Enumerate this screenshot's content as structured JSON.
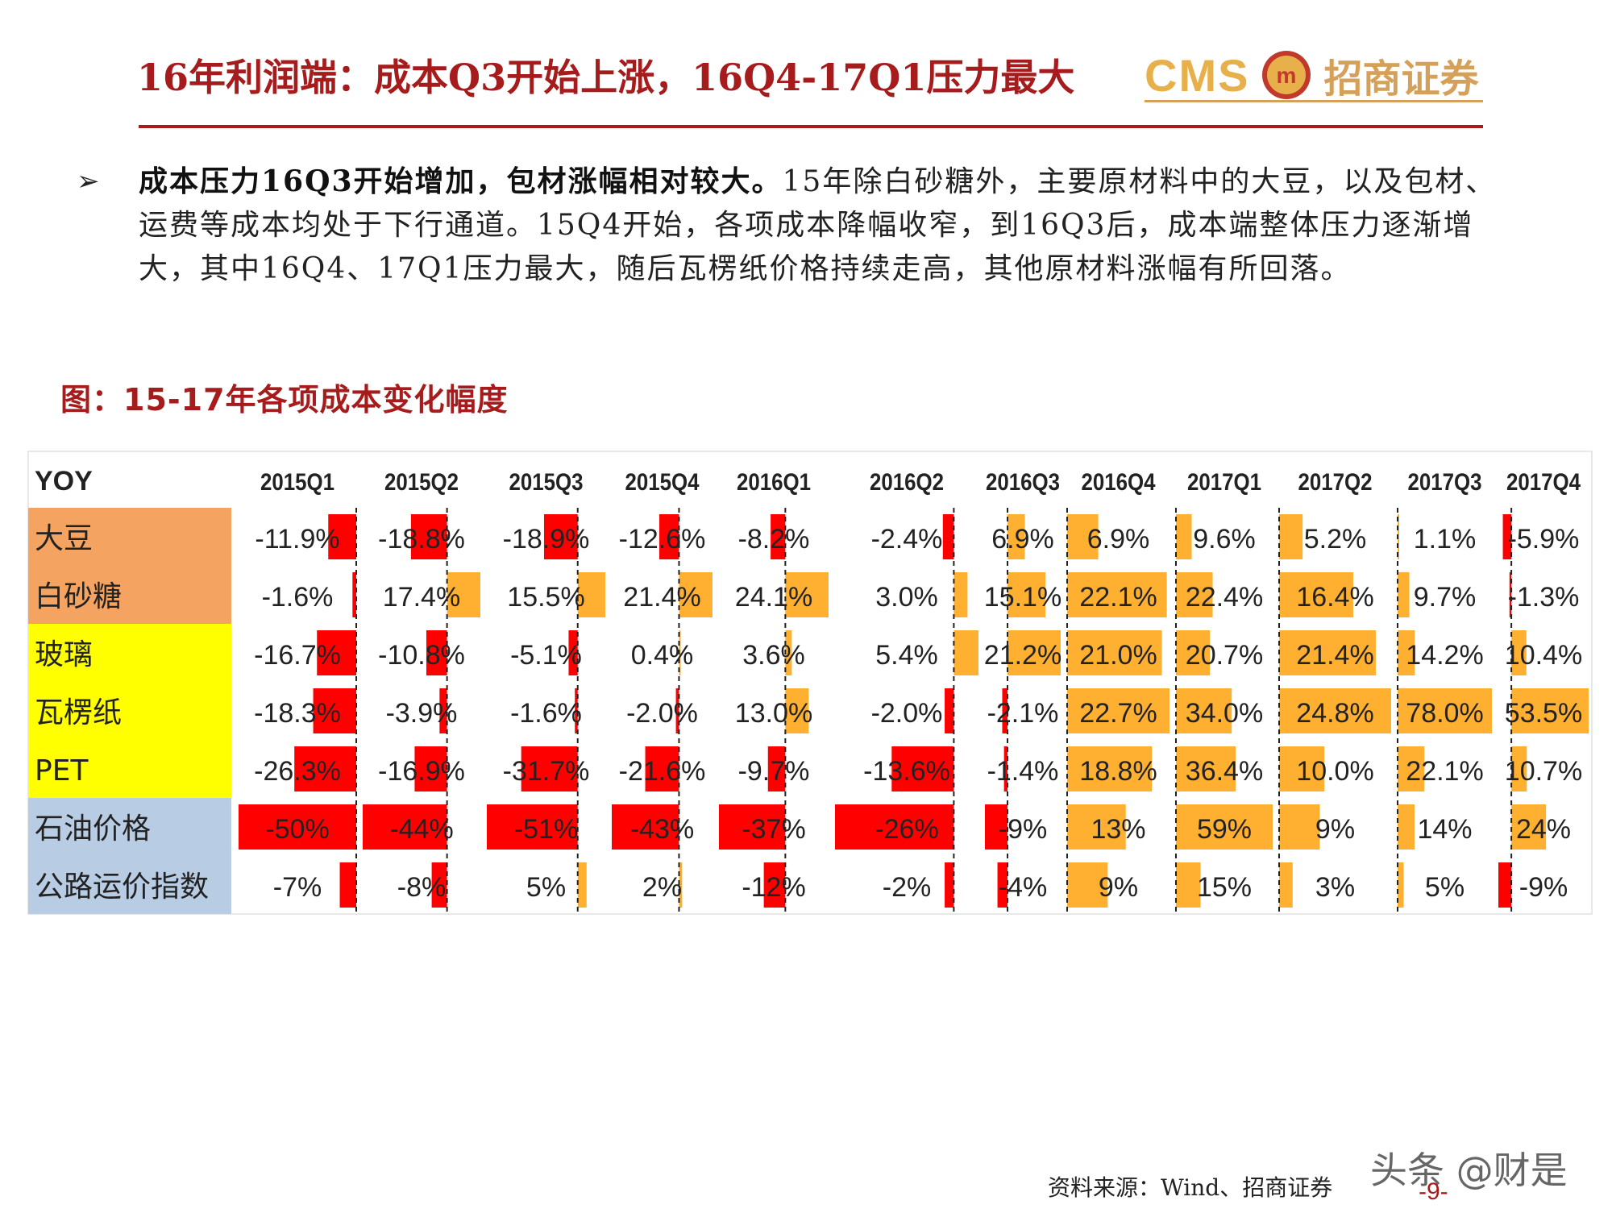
{
  "header": {
    "title": "16年利润端：成本Q3开始上涨，16Q4-17Q1压力最大",
    "logo_text": "CMS",
    "logo_name": "招商证券",
    "brand_color": "#a61c1c",
    "logo_color": "#e8b04a"
  },
  "bullet": {
    "icon": "arrow-bullet-icon",
    "bold": "成本压力16Q3开始增加，包材涨幅相对较大。",
    "text": "15年除白砂糖外，主要原材料中的大豆，以及包材、运费等成本均处于下行通道。15Q4开始，各项成本降幅收窄，到16Q3后，成本端整体压力逐渐增大，其中16Q4、17Q1压力最大，随后瓦楞纸价格持续走高，其他原材料涨幅有所回落。"
  },
  "figure": {
    "title": "图：15-17年各项成本变化幅度"
  },
  "chart_data": {
    "type": "table",
    "corner_label": "YOY",
    "columns": [
      "2015Q1",
      "2015Q2",
      "2015Q3",
      "2015Q4",
      "2016Q1",
      "2016Q2",
      "2016Q3",
      "2016Q4",
      "2017Q1",
      "2017Q2",
      "2017Q3",
      "2017Q4"
    ],
    "rows": [
      {
        "name": "大豆",
        "group": "orange",
        "values": [
          -11.9,
          -18.8,
          -18.9,
          -12.6,
          -8.2,
          -2.4,
          6.9,
          6.9,
          9.6,
          5.2,
          1.1,
          -5.9
        ],
        "labels": [
          "-11.9%",
          "-18.8%",
          "-18.9%",
          "-12.6%",
          "-8.2%",
          "-2.4%",
          "6.9%",
          "6.9%",
          "9.6%",
          "5.2%",
          "1.1%",
          "-5.9%"
        ]
      },
      {
        "name": "白砂糖",
        "group": "orange",
        "values": [
          -1.6,
          17.4,
          15.5,
          21.4,
          24.1,
          3.0,
          15.1,
          22.1,
          22.4,
          16.4,
          9.7,
          -1.3
        ],
        "labels": [
          "-1.6%",
          "17.4%",
          "15.5%",
          "21.4%",
          "24.1%",
          "3.0%",
          "15.1%",
          "22.1%",
          "22.4%",
          "16.4%",
          "9.7%",
          "-1.3%"
        ]
      },
      {
        "name": "玻璃",
        "group": "yellow",
        "values": [
          -16.7,
          -10.8,
          -5.1,
          0.4,
          3.6,
          5.4,
          21.2,
          21.0,
          20.7,
          21.4,
          14.2,
          10.4
        ],
        "labels": [
          "-16.7%",
          "-10.8%",
          "-5.1%",
          "0.4%",
          "3.6%",
          "5.4%",
          "21.2%",
          "21.0%",
          "20.7%",
          "21.4%",
          "14.2%",
          "10.4%"
        ]
      },
      {
        "name": "瓦楞纸",
        "group": "yellow",
        "values": [
          -18.3,
          -3.9,
          -1.6,
          -2.0,
          13.0,
          -2.0,
          -2.1,
          22.7,
          34.0,
          24.8,
          78.0,
          53.5
        ],
        "labels": [
          "-18.3%",
          "-3.9%",
          "-1.6%",
          "-2.0%",
          "13.0%",
          "-2.0%",
          "-2.1%",
          "22.7%",
          "34.0%",
          "24.8%",
          "78.0%",
          "53.5%"
        ]
      },
      {
        "name": "PET",
        "group": "yellow",
        "values": [
          -26.3,
          -16.9,
          -31.7,
          -21.6,
          -9.7,
          -13.6,
          -1.4,
          18.8,
          36.4,
          10.0,
          22.1,
          10.7
        ],
        "labels": [
          "-26.3%",
          "-16.9%",
          "-31.7%",
          "-21.6%",
          "-9.7%",
          "-13.6%",
          "-1.4%",
          "18.8%",
          "36.4%",
          "10.0%",
          "22.1%",
          "10.7%"
        ]
      },
      {
        "name": "石油价格",
        "group": "blue",
        "values": [
          -50,
          -44,
          -51,
          -43,
          -37,
          -26,
          -9,
          13,
          59,
          9,
          14,
          24
        ],
        "labels": [
          "-50%",
          "-44%",
          "-51%",
          "-43%",
          "-37%",
          "-26%",
          "-9%",
          "13%",
          "59%",
          "9%",
          "14%",
          "24%"
        ]
      },
      {
        "name": "公路运价指数",
        "group": "blue",
        "values": [
          -7,
          -8,
          5,
          2,
          -12,
          -2,
          -4,
          9,
          15,
          3,
          5,
          -9
        ],
        "labels": [
          "-7%",
          "-8%",
          "5%",
          "2%",
          "-12%",
          "-2%",
          "-4%",
          "9%",
          "15%",
          "3%",
          "5%",
          "-9%"
        ]
      }
    ],
    "colors": {
      "negative": "#ff0000",
      "positive": "#ffb030",
      "orange": "#f4a460",
      "yellow": "#ffff00",
      "blue": "#b8cce4"
    }
  },
  "footer": {
    "source": "资料来源：Wind、招商证券",
    "page": "-9-",
    "watermark": "头条 @财是"
  }
}
